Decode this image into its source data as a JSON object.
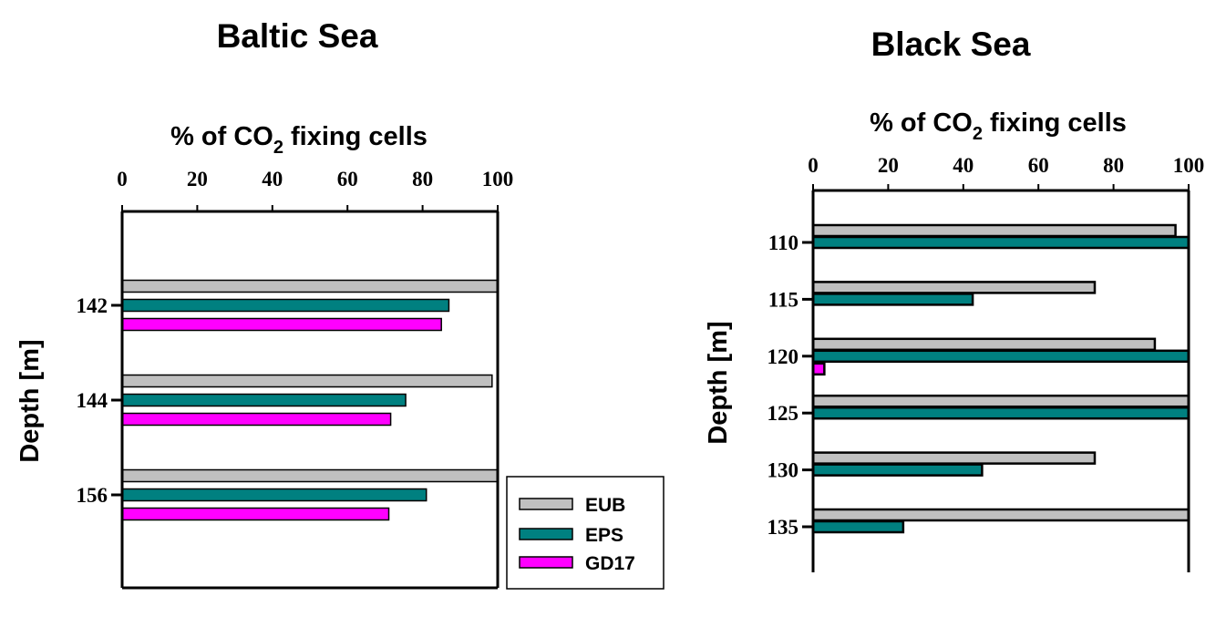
{
  "chart_data": [
    {
      "type": "bar",
      "orientation": "horizontal",
      "title": "Baltic Sea",
      "xlabel": "% of CO2 fixing cells",
      "xlabel_main": "% of CO",
      "xlabel_sub": "2",
      "xlabel_rest": " fixing cells",
      "ylabel": "Depth [m]",
      "xlim": [
        0,
        100
      ],
      "xticks": [
        "0",
        "20",
        "40",
        "60",
        "80",
        "100"
      ],
      "categories": [
        "142",
        "144",
        "156"
      ],
      "series": [
        {
          "name": "EUB",
          "color": "#c0c0c0",
          "values": [
            100,
            98.5,
            100
          ]
        },
        {
          "name": "EPS",
          "color": "#008080",
          "values": [
            87,
            75.5,
            81
          ]
        },
        {
          "name": "GD17",
          "color": "#ff00ff",
          "values": [
            85,
            71.5,
            71
          ]
        }
      ],
      "legend": {
        "position": "bottom-right",
        "entries": [
          "EUB",
          "EPS",
          "GD17"
        ]
      }
    },
    {
      "type": "bar",
      "orientation": "horizontal",
      "title": "Black Sea",
      "xlabel": "% of CO2 fixing cells",
      "xlabel_main": "% of CO",
      "xlabel_sub": "2",
      "xlabel_rest": " fixing cells",
      "ylabel": "Depth [m]",
      "xlim": [
        0,
        100
      ],
      "xticks": [
        "0",
        "20",
        "40",
        "60",
        "80",
        "100"
      ],
      "categories": [
        "110",
        "115",
        "120",
        "125",
        "130",
        "135"
      ],
      "series": [
        {
          "name": "EUB",
          "color": "#c0c0c0",
          "values": [
            96.5,
            75,
            91,
            100,
            75,
            100
          ]
        },
        {
          "name": "EPS",
          "color": "#008080",
          "values": [
            100,
            42.5,
            100,
            100,
            45,
            24
          ]
        },
        {
          "name": "GD17",
          "color": "#ff00ff",
          "values": [
            0,
            0,
            3,
            0,
            0,
            0
          ]
        }
      ]
    }
  ]
}
